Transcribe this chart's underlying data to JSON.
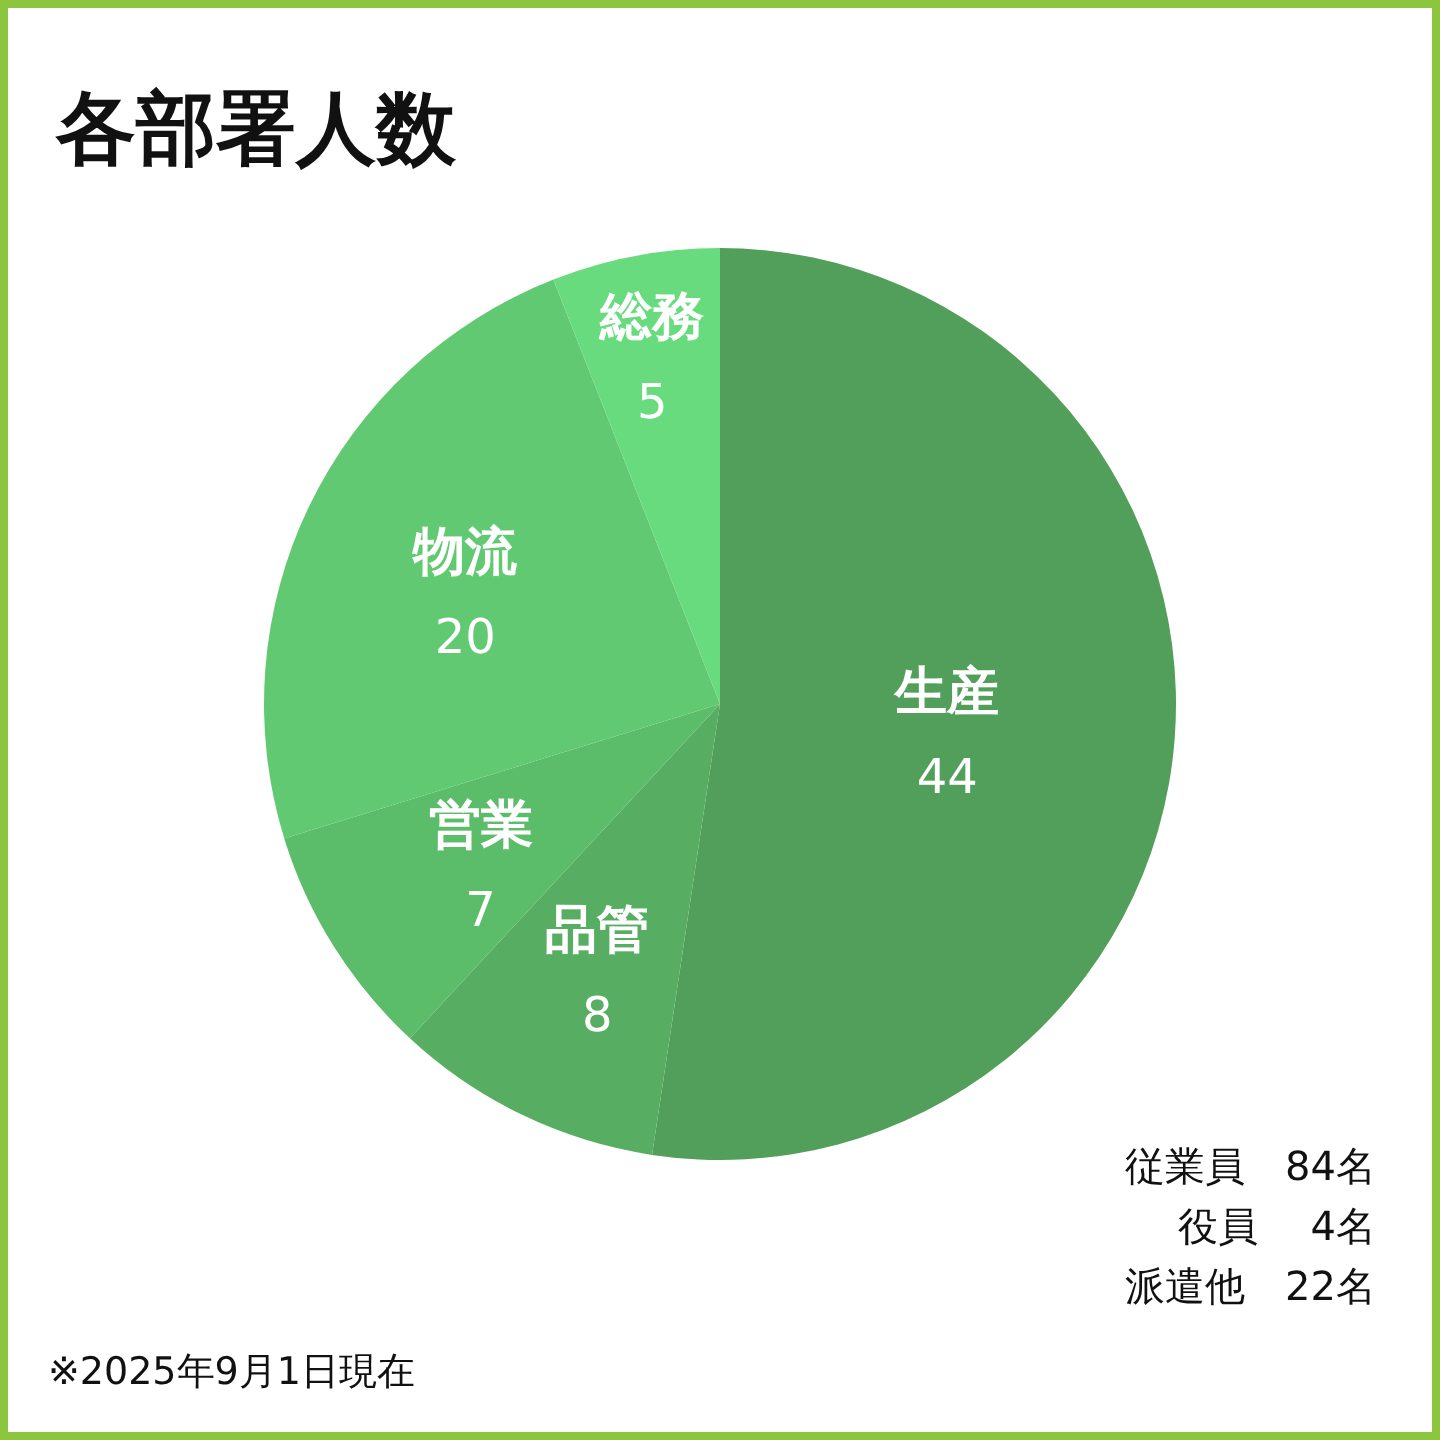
{
  "chart_data": {
    "type": "pie",
    "title": "各部署人数",
    "categories": [
      "生産",
      "品管",
      "営業",
      "物流",
      "総務"
    ],
    "values": [
      44,
      8,
      7,
      20,
      5
    ],
    "colors": [
      "#529f5b",
      "#57ae62",
      "#5bbc69",
      "#61c971",
      "#68db7e"
    ],
    "data_labels": true,
    "annotations": [
      "従業員　84名",
      "役員　 4名",
      "派遣他　22名",
      "※2025年9月1日現在"
    ]
  }
}
